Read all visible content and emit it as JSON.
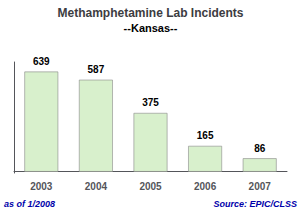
{
  "chart_data": {
    "type": "bar",
    "title": "Methamphetamine Lab Incidents",
    "subtitle": "--Kansas--",
    "categories": [
      "2003",
      "2004",
      "2005",
      "2006",
      "2007"
    ],
    "values": [
      639,
      587,
      375,
      165,
      86
    ],
    "color": "#d8f0cc",
    "ylim": [
      -8,
      700
    ],
    "grid": false,
    "tick_labels": "x",
    "data_labels": true,
    "annotations": [
      "as of 1/2008",
      "Source: EPIC/CLSS"
    ]
  }
}
